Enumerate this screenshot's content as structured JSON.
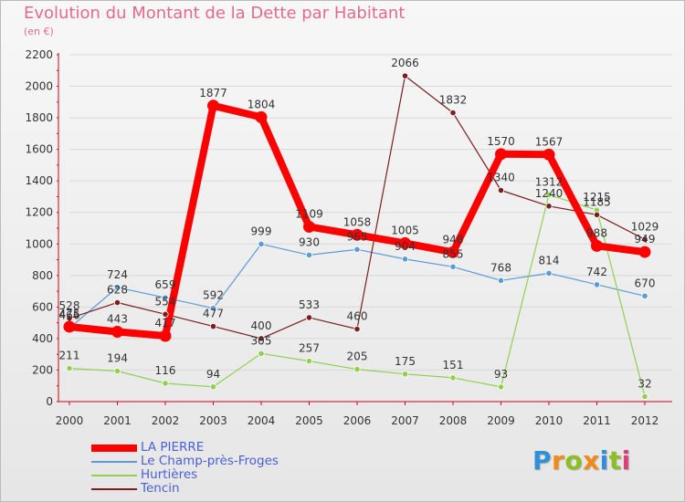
{
  "header": {
    "title": "Evolution du Montant de la Dette par Habitant",
    "subtitle": "(en €)"
  },
  "logo": {
    "text": "Proxiti"
  },
  "colors": {
    "title": "#e26a8d",
    "axis": "#d0021b",
    "grid": "#d9d9d9",
    "legend_text": "#4a5fd6"
  },
  "chart_data": {
    "type": "line",
    "title": "Evolution du Montant de la Dette par Habitant",
    "subtitle": "(en €)",
    "x": [
      "2000",
      "2001",
      "2002",
      "2003",
      "2004",
      "2005",
      "2006",
      "2007",
      "2008",
      "2009",
      "2010",
      "2011",
      "2012"
    ],
    "ylim": [
      0,
      2200
    ],
    "yticks": [
      0,
      200,
      400,
      600,
      800,
      1000,
      1200,
      1400,
      1600,
      1800,
      2000,
      2200
    ],
    "grid": true,
    "legend": "bottom-left",
    "series": [
      {
        "name": "LA PIERRE",
        "color": "#ff0000",
        "width": 8,
        "values": [
          475,
          443,
          417,
          1877,
          1804,
          1109,
          1058,
          1005,
          948,
          1570,
          1567,
          988,
          949
        ],
        "labels": [
          "475",
          "443",
          "417",
          "1877",
          "1804",
          "1109",
          "1058",
          "1005",
          "948",
          "1570",
          "1567",
          "988",
          "949"
        ]
      },
      {
        "name": "Le Champ-près-Froges",
        "color": "#5b9bd5",
        "width": 1.2,
        "values": [
          466,
          724,
          659,
          592,
          999,
          930,
          965,
          904,
          855,
          768,
          814,
          742,
          670
        ],
        "labels": [
          "466",
          "724",
          "659",
          "592",
          "999",
          "930",
          "965",
          "904",
          "855",
          "768",
          "814",
          "742",
          "670"
        ]
      },
      {
        "name": "Hurtières",
        "color": "#8fd14f",
        "width": 1.2,
        "values": [
          211,
          194,
          116,
          94,
          305,
          257,
          205,
          175,
          151,
          93,
          1312,
          1215,
          32
        ],
        "labels": [
          "211",
          "194",
          "116",
          "94",
          "305",
          "257",
          "205",
          "175",
          "151",
          "93",
          "1312",
          "1215",
          "32"
        ]
      },
      {
        "name": "Tencin",
        "color": "#7a1f1f",
        "width": 1.2,
        "segments": [
          [
            0,
            6
          ],
          [
            6,
            12
          ]
        ],
        "values": [
          528,
          628,
          554,
          477,
          400,
          533,
          460,
          2066,
          1832,
          1340,
          1240,
          1185,
          1029
        ],
        "labels": [
          "528",
          "628",
          "554",
          "477",
          "400",
          "533",
          "460",
          "2066",
          "1832",
          "1340",
          "1240",
          "1185",
          "1029"
        ]
      }
    ]
  }
}
